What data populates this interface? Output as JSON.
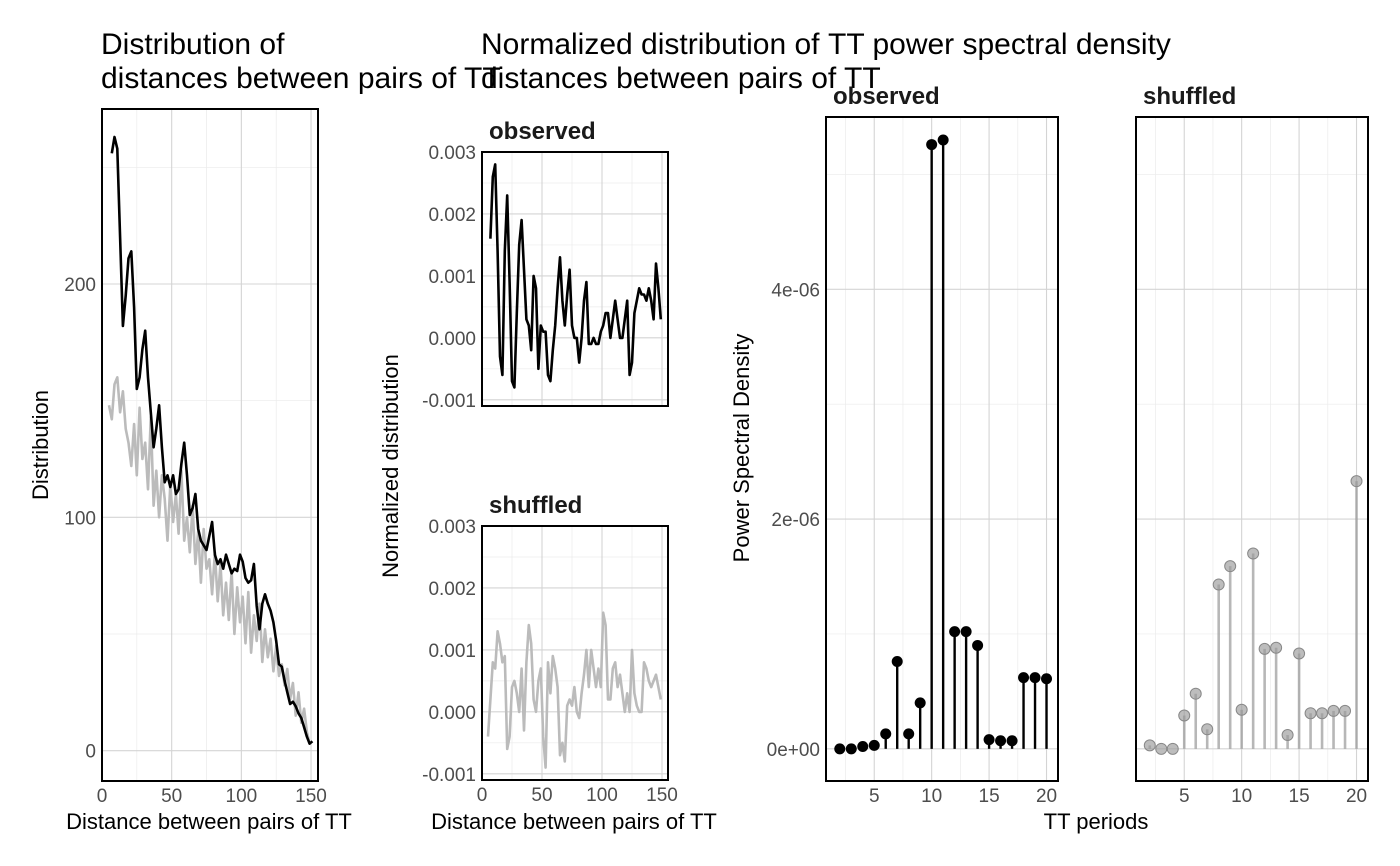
{
  "chart_data": [
    {
      "type": "line",
      "title_lines": [
        "Distribution of",
        "distances between pairs of TT"
      ],
      "xlabel": "Distance between pairs of TT",
      "ylabel": "Distribution",
      "xlim": [
        0,
        155
      ],
      "ylim": [
        -13,
        275
      ],
      "x_ticks": [
        0,
        50,
        100,
        150
      ],
      "y_ticks": [
        0,
        100,
        200
      ],
      "grid": true,
      "series": [
        {
          "color": "#bbbbbb",
          "x": [
            5,
            7,
            9,
            11,
            13,
            15,
            17,
            19,
            21,
            23,
            25,
            27,
            29,
            31,
            33,
            35,
            37,
            39,
            41,
            43,
            45,
            47,
            49,
            51,
            53,
            55,
            57,
            59,
            61,
            63,
            65,
            67,
            69,
            71,
            73,
            75,
            77,
            79,
            81,
            83,
            85,
            87,
            89,
            91,
            93,
            95,
            97,
            99,
            101,
            103,
            105,
            107,
            109,
            111,
            113,
            115,
            117,
            119,
            121,
            123,
            125,
            127,
            129,
            131,
            133,
            135,
            137,
            139,
            141,
            143,
            145,
            147,
            149
          ],
          "values": [
            148,
            142,
            157,
            160,
            145,
            154,
            138,
            132,
            122,
            140,
            118,
            147,
            125,
            132,
            112,
            143,
            105,
            120,
            100,
            118,
            108,
            90,
            114,
            98,
            110,
            93,
            120,
            90,
            100,
            85,
            105,
            80,
            94,
            72,
            95,
            78,
            82,
            67,
            85,
            64,
            80,
            58,
            72,
            56,
            77,
            50,
            70,
            55,
            66,
            46,
            68,
            42,
            58,
            47,
            63,
            38,
            52,
            40,
            48,
            34,
            45,
            32,
            37,
            28,
            35,
            22,
            29,
            15,
            25,
            12,
            18,
            8,
            3
          ]
        },
        {
          "color": "#000000",
          "x": [
            7,
            9,
            11,
            13,
            15,
            17,
            19,
            21,
            23,
            25,
            27,
            29,
            31,
            33,
            35,
            37,
            39,
            41,
            43,
            45,
            47,
            49,
            51,
            53,
            55,
            57,
            59,
            61,
            63,
            65,
            67,
            69,
            71,
            73,
            75,
            77,
            79,
            81,
            83,
            85,
            87,
            89,
            91,
            93,
            95,
            97,
            99,
            101,
            103,
            105,
            107,
            109,
            111,
            113,
            115,
            117,
            119,
            121,
            123,
            125,
            127,
            129,
            131,
            133,
            135,
            137,
            139,
            141,
            143,
            145,
            147,
            149,
            151
          ],
          "values": [
            256,
            263,
            258,
            220,
            182,
            195,
            211,
            214,
            190,
            155,
            160,
            172,
            180,
            160,
            145,
            130,
            138,
            148,
            130,
            115,
            118,
            113,
            118,
            110,
            112,
            123,
            132,
            118,
            101,
            104,
            110,
            95,
            90,
            88,
            86,
            92,
            98,
            84,
            80,
            82,
            78,
            84,
            80,
            76,
            78,
            77,
            84,
            81,
            74,
            72,
            73,
            80,
            62,
            52,
            63,
            67,
            63,
            60,
            55,
            47,
            37,
            36,
            30,
            25,
            20,
            21,
            19,
            16,
            14,
            10,
            6,
            3,
            4
          ]
        }
      ]
    },
    {
      "type": "line",
      "title_lines": [
        "Normalized distribution of",
        "distances between pairs of TT"
      ],
      "xlabel": "Distance between pairs of TT",
      "ylabel": "Normalized distribution",
      "panels": [
        {
          "strip": "observed",
          "xlim": [
            0,
            155
          ],
          "ylim": [
            -0.0011,
            0.003
          ],
          "x_ticks": [],
          "y_ticks": [
            -0.001,
            0.0,
            0.001,
            0.002,
            0.003
          ],
          "y_tick_labels": [
            "-0.001",
            "0.000",
            "0.001",
            "0.002",
            "0.003"
          ],
          "series": [
            {
              "color": "#000000",
              "x": [
                7,
                9,
                11,
                13,
                15,
                17,
                19,
                21,
                23,
                25,
                27,
                29,
                31,
                33,
                35,
                37,
                39,
                41,
                43,
                45,
                47,
                49,
                51,
                53,
                55,
                57,
                59,
                61,
                63,
                65,
                67,
                69,
                71,
                73,
                75,
                77,
                79,
                81,
                83,
                85,
                87,
                89,
                91,
                93,
                95,
                97,
                99,
                101,
                103,
                105,
                107,
                109,
                111,
                113,
                115,
                117,
                119,
                121,
                123,
                125,
                127,
                129,
                131,
                133,
                135,
                137,
                139,
                141,
                143,
                145,
                147,
                149
              ],
              "values": [
                0.0016,
                0.0026,
                0.0028,
                0.0014,
                -0.0003,
                -0.0006,
                0.0014,
                0.0023,
                0.0009,
                -0.0007,
                -0.0008,
                0.0004,
                0.0015,
                0.0019,
                0.0011,
                0.0003,
                0.0002,
                -0.0002,
                0.001,
                0.0008,
                -0.0005,
                0.0002,
                0.0001,
                0.0001,
                -0.0006,
                -0.0007,
                -0.0002,
                0.0002,
                0.0008,
                0.0013,
                0.0006,
                0.0002,
                0.0007,
                0.0011,
                0.0002,
                0.0,
                0.0,
                -0.0004,
                0.0,
                0.0006,
                0.0009,
                -0.0001,
                -0.0001,
                0.0,
                -0.0001,
                -0.0001,
                0.0001,
                0.0002,
                0.0004,
                0.0004,
                0.0,
                0.0003,
                0.0006,
                0.0003,
                0.0,
                0.0,
                0.0003,
                0.0006,
                -0.0006,
                -0.0004,
                0.0004,
                0.0006,
                0.0008,
                0.0007,
                0.0007,
                0.0006,
                0.0008,
                0.0006,
                0.0003,
                0.0012,
                0.0008,
                0.0003
              ]
            }
          ]
        },
        {
          "strip": "shuffled",
          "xlim": [
            0,
            155
          ],
          "ylim": [
            -0.0011,
            0.003
          ],
          "x_ticks": [
            0,
            50,
            100,
            150
          ],
          "y_ticks": [
            -0.001,
            0.0,
            0.001,
            0.002,
            0.003
          ],
          "y_tick_labels": [
            "-0.001",
            "0.000",
            "0.001",
            "0.002",
            "0.003"
          ],
          "series": [
            {
              "color": "#bbbbbb",
              "x": [
                5,
                7,
                9,
                11,
                13,
                15,
                17,
                19,
                21,
                23,
                25,
                27,
                29,
                31,
                33,
                35,
                37,
                39,
                41,
                43,
                45,
                47,
                49,
                51,
                53,
                55,
                57,
                59,
                61,
                63,
                65,
                67,
                69,
                71,
                73,
                75,
                77,
                79,
                81,
                83,
                85,
                87,
                89,
                91,
                93,
                95,
                97,
                99,
                101,
                103,
                105,
                107,
                109,
                111,
                113,
                115,
                117,
                119,
                121,
                123,
                125,
                127,
                129,
                131,
                133,
                135,
                137,
                139,
                141,
                143,
                145,
                147,
                149
              ],
              "values": [
                -0.0004,
                0.0002,
                0.0008,
                0.0007,
                0.0013,
                0.0011,
                0.0008,
                0.0009,
                -0.0006,
                -0.0004,
                0.0004,
                0.0005,
                0.0003,
                0.0,
                0.0007,
                -0.0003,
                0.0008,
                0.0014,
                0.0011,
                0.0002,
                0.0,
                0.0005,
                0.0007,
                -0.0004,
                -0.0009,
                0.0008,
                0.0003,
                0.0009,
                0.0007,
                0.0004,
                -0.0007,
                -0.0005,
                -0.0008,
                0.0001,
                0.0002,
                0.0001,
                0.0004,
                0.0,
                -0.0001,
                0.0003,
                0.0006,
                0.001,
                0.0004,
                0.001,
                0.0007,
                0.0004,
                0.0007,
                0.0004,
                0.0016,
                0.0014,
                0.0002,
                0.0002,
                0.0007,
                0.0008,
                0.0004,
                0.0006,
                0.0003,
                0.0,
                0.0003,
                0.0,
                0.001,
                0.0003,
                0.0001,
                0.0,
                0.0,
                0.0008,
                0.0007,
                0.0005,
                0.0004,
                0.0005,
                0.0006,
                0.0004,
                0.0002
              ]
            }
          ]
        }
      ]
    },
    {
      "type": "lollipop",
      "title_lines": [
        "TT power spectral density"
      ],
      "xlabel": "TT periods",
      "ylabel": "Power Spectral Density",
      "panels": [
        {
          "strip": "observed",
          "color": "#000000",
          "xlim": [
            0.8,
            21
          ],
          "ylim": [
            -2.8e-07,
            5.5e-06
          ],
          "x_ticks": [
            5,
            10,
            15,
            20
          ],
          "y_ticks": [
            0,
            2e-06,
            4e-06
          ],
          "y_tick_labels": [
            "0e+00",
            "2e-06",
            "4e-06"
          ],
          "x": [
            2,
            3,
            4,
            5,
            6,
            7,
            8,
            9,
            10,
            11,
            12,
            13,
            14,
            15,
            16,
            17,
            18,
            19,
            20
          ],
          "values": [
            0.0,
            0.0,
            2e-08,
            3e-08,
            1.3e-07,
            7.6e-07,
            1.3e-07,
            4e-07,
            5.26e-06,
            5.3e-06,
            1.02e-06,
            1.02e-06,
            9e-07,
            8e-08,
            7e-08,
            7e-08,
            6.2e-07,
            6.2e-07,
            6.1e-07
          ]
        },
        {
          "strip": "shuffled",
          "color": "#999999",
          "xlim": [
            0.8,
            21
          ],
          "ylim": [
            -2.8e-07,
            5.5e-06
          ],
          "x_ticks": [
            5,
            10,
            15,
            20
          ],
          "y_ticks": [
            0,
            2e-06,
            4e-06
          ],
          "y_tick_labels": [],
          "x": [
            2,
            3,
            4,
            5,
            6,
            7,
            8,
            9,
            10,
            11,
            12,
            13,
            14,
            15,
            16,
            17,
            18,
            19,
            20
          ],
          "values": [
            3e-08,
            0.0,
            0.0,
            2.9e-07,
            4.8e-07,
            1.7e-07,
            1.43e-06,
            1.59e-06,
            3.4e-07,
            1.7e-06,
            8.7e-07,
            8.8e-07,
            1.2e-07,
            8.3e-07,
            3.1e-07,
            3.1e-07,
            3.3e-07,
            3.3e-07,
            2.33e-06
          ]
        }
      ]
    }
  ]
}
